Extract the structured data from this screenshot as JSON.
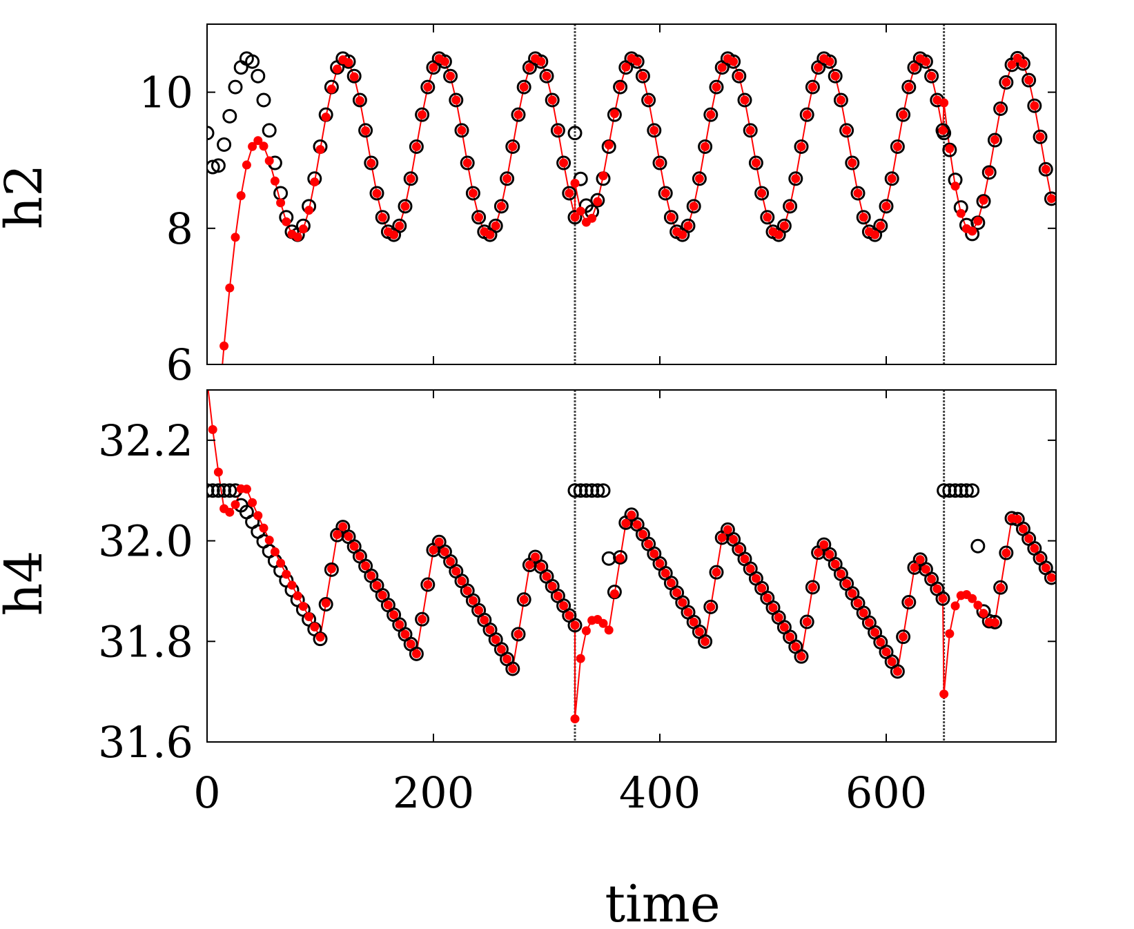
{
  "chart_data": [
    {
      "type": "scatter",
      "ylabel": "h2",
      "xlabel": "",
      "xlim": [
        0,
        750
      ],
      "ylim": [
        6,
        11
      ],
      "xticks": [
        0,
        200,
        400,
        600
      ],
      "yticks": [
        6,
        8,
        10
      ],
      "ytick_labels": [
        "6",
        "8",
        "10"
      ],
      "markers": {
        "open": "open-black-circles",
        "filled": "filled-red-circles-with-line"
      },
      "model": {
        "kind": "oscillation",
        "center": 9.2,
        "amp": 1.3,
        "period": 85,
        "phase0": -5,
        "segments": [
          [
            0,
            325
          ],
          [
            325,
            651
          ],
          [
            651,
            750
          ]
        ],
        "step": 5,
        "init": 9.4,
        "init_decay": 24,
        "pred_start": 5.0,
        "pred_decay": 20,
        "pred_amp_scale": [
          0.6,
          1.0
        ],
        "pred_ramp": 45
      }
    },
    {
      "type": "scatter",
      "ylabel": "h4",
      "xlabel": "time",
      "xlim": [
        0,
        750
      ],
      "ylim": [
        31.6,
        32.3
      ],
      "xticks": [
        0,
        200,
        400,
        600
      ],
      "xtick_labels": [
        "0",
        "200",
        "400",
        "600"
      ],
      "yticks": [
        31.6,
        31.8,
        32.0,
        32.2
      ],
      "ytick_labels": [
        "31.6",
        "31.8",
        "32.0",
        "32.2"
      ],
      "markers": {
        "open": "open-black-circles",
        "filled": "filled-red-circles-with-line"
      },
      "model": {
        "kind": "sawtooth",
        "center": 31.96,
        "amp": 0.12,
        "period": 85,
        "segments": [
          [
            0,
            325
          ],
          [
            325,
            651
          ],
          [
            651,
            750
          ]
        ],
        "step": 5,
        "init": 32.1,
        "init_hold": 25,
        "pred_start": 32.32,
        "pred_decay": 20,
        "drift": -0.00035
      }
    }
  ],
  "segment_boundaries": [
    325,
    651
  ],
  "colors": {
    "observed": "#000000",
    "predicted": "#ff0000",
    "axes": "#000000",
    "boundary": "#444444"
  }
}
